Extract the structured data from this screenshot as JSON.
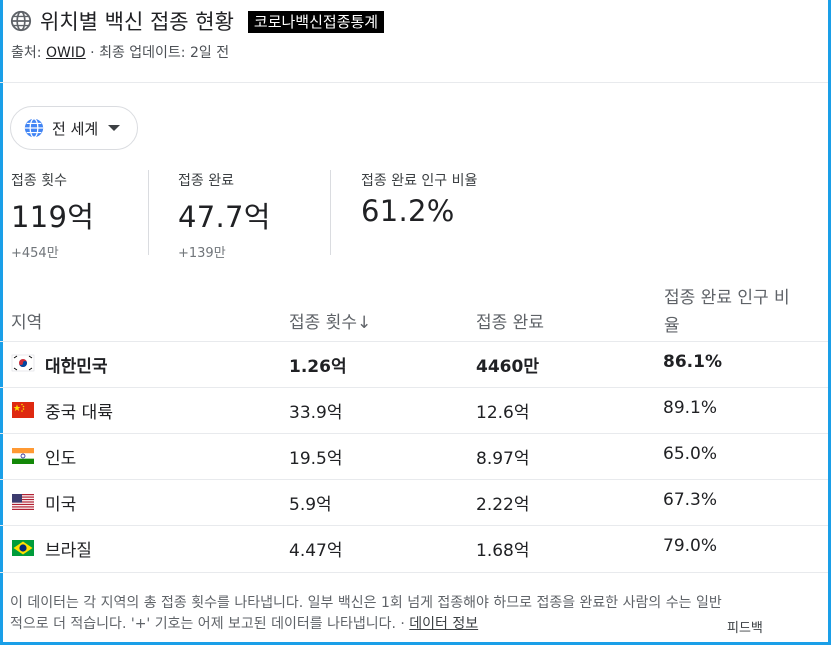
{
  "header": {
    "title": "위치별 백신 접종 현황",
    "tag": "코로나백신접종통계",
    "source_prefix": "출처: ",
    "source_link": "OWID",
    "source_suffix": " · 최종 업데이트: 2일 전"
  },
  "region_selector": {
    "label": "전 세계"
  },
  "stats": [
    {
      "label": "접종 횟수",
      "value": "119억",
      "delta": "+454만"
    },
    {
      "label": "접종 완료",
      "value": "47.7억",
      "delta": "+139만"
    },
    {
      "label": "접종 완료 인구 비율",
      "value": "61.2%"
    }
  ],
  "table": {
    "headers": [
      "지역",
      "접종 횟수↓",
      "접종 완료",
      "접종 완료 인구 비",
      "율"
    ],
    "rows": [
      {
        "flag": "south-korea-flag",
        "region": "대한민국",
        "doses": "1.26억",
        "complete": "4460만",
        "percent": "86.1%"
      },
      {
        "flag": "china-flag",
        "region": "중국 대륙",
        "doses": "33.9억",
        "complete": "12.6억",
        "percent": "89.1%"
      },
      {
        "flag": "india-flag",
        "region": "인도",
        "doses": "19.5억",
        "complete": "8.97억",
        "percent": "65.0%"
      },
      {
        "flag": "usa-flag",
        "region": "미국",
        "doses": "5.9억",
        "complete": "2.22억",
        "percent": "67.3%"
      },
      {
        "flag": "brazil-flag",
        "region": "브라질",
        "doses": "4.47억",
        "complete": "1.68억",
        "percent": "79.0%"
      }
    ]
  },
  "footnote": {
    "line1": "이 데이터는 각 지역의 총 접종 횟수를 나타냅니다. 일부 백신은 1회 넘게 접종해야 하므로 접종을 완료한 사람의 수는 일반",
    "line2": "적으로 더 적습니다. '+' 기호는 어제 보고된 데이터를 나타냅니다. · ",
    "link": "데이터 정보"
  },
  "feedback": "피드백",
  "colors": {
    "frame": "#1a9fe8",
    "globe": "#4285f4"
  }
}
